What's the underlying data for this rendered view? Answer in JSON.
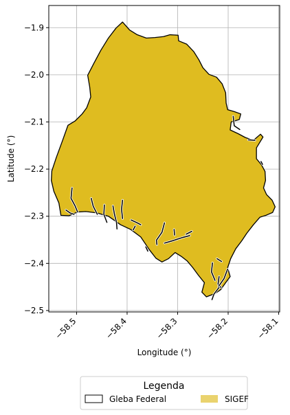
{
  "chart_data": {
    "type": "map",
    "xlabel": "Longitude (°)",
    "ylabel": "Latitude (°)",
    "xlim": [
      -58.555,
      -58.098
    ],
    "ylim": [
      -2.503,
      -1.853
    ],
    "x_ticks": [
      -58.5,
      -58.4,
      -58.3,
      -58.2,
      -58.1
    ],
    "y_ticks": [
      -1.9,
      -2.0,
      -2.1,
      -2.2,
      -2.3,
      -2.4,
      -2.5
    ],
    "x_tick_labels": [
      "−58.5",
      "−58.4",
      "−58.3",
      "−58.2",
      "−58.1"
    ],
    "y_tick_labels": [
      "−1.9",
      "−2.0",
      "−2.1",
      "−2.2",
      "−2.3",
      "−2.4",
      "−2.5"
    ],
    "grid": true,
    "layers": [
      {
        "name": "Gleba Federal",
        "style": "outline",
        "edge_color": "#000000",
        "polygon": [
          [
            -58.409,
            -1.888
          ],
          [
            -58.395,
            -1.905
          ],
          [
            -58.38,
            -1.915
          ],
          [
            -58.362,
            -1.922
          ],
          [
            -58.345,
            -1.921
          ],
          [
            -58.328,
            -1.919
          ],
          [
            -58.315,
            -1.915
          ],
          [
            -58.299,
            -1.916
          ],
          [
            -58.298,
            -1.928
          ],
          [
            -58.282,
            -1.935
          ],
          [
            -58.268,
            -1.951
          ],
          [
            -58.258,
            -1.968
          ],
          [
            -58.25,
            -1.985
          ],
          [
            -58.238,
            -1.999
          ],
          [
            -58.223,
            -2.005
          ],
          [
            -58.212,
            -2.019
          ],
          [
            -58.205,
            -2.038
          ],
          [
            -58.204,
            -2.06
          ],
          [
            -58.201,
            -2.074
          ],
          [
            -58.188,
            -2.078
          ],
          [
            -58.175,
            -2.083
          ],
          [
            -58.178,
            -2.095
          ],
          [
            -58.194,
            -2.1
          ],
          [
            -58.196,
            -2.117
          ],
          [
            -58.18,
            -2.125
          ],
          [
            -58.166,
            -2.133
          ],
          [
            -58.15,
            -2.139
          ],
          [
            -58.136,
            -2.126
          ],
          [
            -58.131,
            -2.132
          ],
          [
            -58.144,
            -2.155
          ],
          [
            -58.144,
            -2.178
          ],
          [
            -58.134,
            -2.191
          ],
          [
            -58.127,
            -2.205
          ],
          [
            -58.126,
            -2.224
          ],
          [
            -58.13,
            -2.24
          ],
          [
            -58.124,
            -2.254
          ],
          [
            -58.113,
            -2.266
          ],
          [
            -58.107,
            -2.28
          ],
          [
            -58.112,
            -2.292
          ],
          [
            -58.125,
            -2.298
          ],
          [
            -58.137,
            -2.302
          ],
          [
            -58.15,
            -2.318
          ],
          [
            -58.163,
            -2.336
          ],
          [
            -58.173,
            -2.352
          ],
          [
            -58.185,
            -2.369
          ],
          [
            -58.195,
            -2.39
          ],
          [
            -58.201,
            -2.409
          ],
          [
            -58.196,
            -2.428
          ],
          [
            -58.205,
            -2.441
          ],
          [
            -58.215,
            -2.456
          ],
          [
            -58.226,
            -2.464
          ],
          [
            -58.243,
            -2.471
          ],
          [
            -58.252,
            -2.461
          ],
          [
            -58.247,
            -2.441
          ],
          [
            -58.259,
            -2.425
          ],
          [
            -58.27,
            -2.409
          ],
          [
            -58.281,
            -2.395
          ],
          [
            -58.293,
            -2.385
          ],
          [
            -58.305,
            -2.377
          ],
          [
            -58.318,
            -2.39
          ],
          [
            -58.331,
            -2.397
          ],
          [
            -58.343,
            -2.389
          ],
          [
            -58.356,
            -2.371
          ],
          [
            -58.373,
            -2.344
          ],
          [
            -58.393,
            -2.328
          ],
          [
            -58.413,
            -2.318
          ],
          [
            -58.437,
            -2.3
          ],
          [
            -58.46,
            -2.293
          ],
          [
            -58.482,
            -2.29
          ],
          [
            -58.498,
            -2.291
          ],
          [
            -58.515,
            -2.299
          ],
          [
            -58.531,
            -2.298
          ],
          [
            -58.535,
            -2.272
          ],
          [
            -58.545,
            -2.247
          ],
          [
            -58.55,
            -2.224
          ],
          [
            -58.549,
            -2.204
          ],
          [
            -58.54,
            -2.175
          ],
          [
            -58.528,
            -2.14
          ],
          [
            -58.517,
            -2.107
          ],
          [
            -58.503,
            -2.098
          ],
          [
            -58.489,
            -2.083
          ],
          [
            -58.48,
            -2.07
          ],
          [
            -58.472,
            -2.047
          ],
          [
            -58.474,
            -2.026
          ],
          [
            -58.478,
            -2.001
          ],
          [
            -58.466,
            -1.976
          ],
          [
            -58.452,
            -1.948
          ],
          [
            -58.437,
            -1.922
          ],
          [
            -58.422,
            -1.901
          ],
          [
            -58.409,
            -1.888
          ]
        ]
      },
      {
        "name": "SIGEF",
        "style": "fill",
        "fill_color": "#dfbc20"
      }
    ],
    "rivers": [
      [
        [
          -58.509,
          -2.24
        ],
        [
          -58.511,
          -2.262
        ],
        [
          -58.503,
          -2.278
        ],
        [
          -58.498,
          -2.291
        ]
      ],
      [
        [
          -58.521,
          -2.287
        ],
        [
          -58.513,
          -2.293
        ],
        [
          -58.505,
          -2.296
        ]
      ],
      [
        [
          -58.471,
          -2.262
        ],
        [
          -58.467,
          -2.279
        ],
        [
          -58.459,
          -2.296
        ]
      ],
      [
        [
          -58.445,
          -2.276
        ],
        [
          -58.446,
          -2.296
        ],
        [
          -58.44,
          -2.313
        ]
      ],
      [
        [
          -58.428,
          -2.278
        ],
        [
          -58.425,
          -2.296
        ],
        [
          -58.421,
          -2.313
        ],
        [
          -58.42,
          -2.327
        ]
      ],
      [
        [
          -58.409,
          -2.266
        ],
        [
          -58.411,
          -2.285
        ],
        [
          -58.409,
          -2.305
        ]
      ],
      [
        [
          -58.392,
          -2.308
        ],
        [
          -58.38,
          -2.314
        ],
        [
          -58.373,
          -2.318
        ]
      ],
      [
        [
          -58.384,
          -2.321
        ],
        [
          -58.388,
          -2.329
        ]
      ],
      [
        [
          -58.359,
          -2.374
        ],
        [
          -58.363,
          -2.365
        ]
      ],
      [
        [
          -58.326,
          -2.314
        ],
        [
          -58.331,
          -2.334
        ],
        [
          -58.342,
          -2.351
        ],
        [
          -58.341,
          -2.36
        ]
      ],
      [
        [
          -58.326,
          -2.357
        ],
        [
          -58.31,
          -2.352
        ],
        [
          -58.29,
          -2.345
        ],
        [
          -58.276,
          -2.341
        ]
      ],
      [
        [
          -58.306,
          -2.34
        ],
        [
          -58.307,
          -2.328
        ]
      ],
      [
        [
          -58.272,
          -2.332
        ],
        [
          -58.283,
          -2.338
        ]
      ],
      [
        [
          -58.231,
          -2.399
        ],
        [
          -58.233,
          -2.418
        ],
        [
          -58.226,
          -2.436
        ]
      ],
      [
        [
          -58.218,
          -2.428
        ],
        [
          -58.22,
          -2.444
        ],
        [
          -58.214,
          -2.451
        ]
      ],
      [
        [
          -58.201,
          -2.412
        ],
        [
          -58.208,
          -2.432
        ],
        [
          -58.219,
          -2.449
        ]
      ],
      [
        [
          -58.218,
          -2.451
        ],
        [
          -58.228,
          -2.465
        ],
        [
          -58.232,
          -2.477
        ]
      ],
      [
        [
          -58.222,
          -2.39
        ],
        [
          -58.213,
          -2.396
        ]
      ],
      [
        [
          -58.19,
          -2.088
        ],
        [
          -58.188,
          -2.108
        ],
        [
          -58.177,
          -2.116
        ]
      ],
      [
        [
          -58.16,
          -2.138
        ],
        [
          -58.147,
          -2.139
        ]
      ],
      [
        [
          -58.135,
          -2.184
        ],
        [
          -58.132,
          -2.19
        ]
      ]
    ]
  },
  "legend": {
    "title": "Legenda",
    "placement": "bottom-center",
    "items": [
      {
        "label": "Gleba Federal",
        "kind": "outline"
      },
      {
        "label": "SIGEF",
        "kind": "fill"
      }
    ]
  }
}
